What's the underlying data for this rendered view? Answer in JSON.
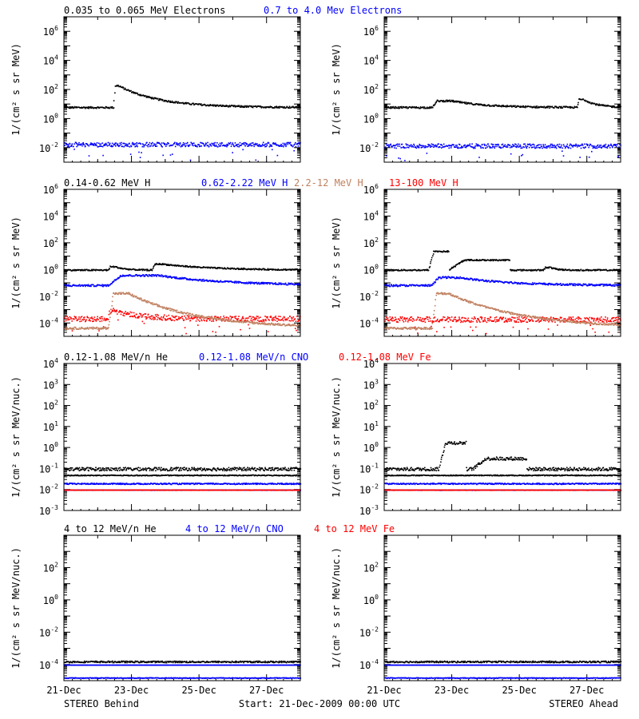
{
  "chart_data": [
    {
      "type": "scatter",
      "row": 1,
      "ylabel": "1/(cm² s sr MeV)",
      "ylim_exp": [
        -3,
        7
      ],
      "yticks": [
        {
          "exp": "-2",
          "label": "10-2"
        },
        {
          "exp": "0",
          "label": "100"
        },
        {
          "exp": "2",
          "label": "102"
        },
        {
          "exp": "4",
          "label": "104"
        },
        {
          "exp": "6",
          "label": "106"
        }
      ],
      "legend": [
        {
          "name": "0.035 to 0.065 MeV Electrons",
          "color": "#000000"
        },
        {
          "name": "0.7 to 4.0 Mev Electrons",
          "color": "#0000ff"
        }
      ],
      "panels": [
        {
          "spacecraft": "STEREO Behind",
          "series": [
            {
              "color": "#000000",
              "base_exp": 0.8,
              "noise": 0.06,
              "events": [
                {
                  "t0": 1.45,
                  "t1": 1.6,
                  "peak": 1.5,
                  "decay": 1.2
                }
              ]
            },
            {
              "color": "#0000ff",
              "base_exp": -1.75,
              "noise": 0.15,
              "events": []
            }
          ]
        },
        {
          "spacecraft": "STEREO Ahead",
          "series": [
            {
              "color": "#000000",
              "base_exp": 0.8,
              "noise": 0.06,
              "events": [
                {
                  "t0": 1.4,
                  "t1": 2.0,
                  "peak": 0.45,
                  "decay": 1.0
                },
                {
                  "t0": 5.7,
                  "t1": 5.9,
                  "peak": 0.55,
                  "decay": 0.4
                }
              ]
            },
            {
              "color": "#0000ff",
              "base_exp": -1.85,
              "noise": 0.15,
              "events": []
            }
          ]
        }
      ]
    },
    {
      "type": "scatter",
      "row": 2,
      "ylabel": "1/(cm² s sr MeV)",
      "ylim_exp": [
        -5,
        6
      ],
      "yticks": [
        {
          "exp": "-4",
          "label": "10-4"
        },
        {
          "exp": "-2",
          "label": "10-2"
        },
        {
          "exp": "0",
          "label": "100"
        },
        {
          "exp": "2",
          "label": "102"
        },
        {
          "exp": "4",
          "label": "104"
        },
        {
          "exp": "6",
          "label": "106"
        }
      ],
      "legend": [
        {
          "name": "0.14-0.62 MeV H",
          "color": "#000000"
        },
        {
          "name": "0.62-2.22 MeV H",
          "color": "#0000ff"
        },
        {
          "name": "2.2-12 MeV H",
          "color": "#c08060"
        },
        {
          "name": "13-100 MeV H",
          "color": "#ff0000"
        }
      ],
      "panels": [
        {
          "spacecraft": "STEREO Behind",
          "series": [
            {
              "color": "#ff0000",
              "base_exp": -3.65,
              "noise": 0.2,
              "events": [
                {
                  "t0": 1.3,
                  "t1": 1.5,
                  "peak": 0.6,
                  "decay": 0.8
                }
              ]
            },
            {
              "color": "#c08060",
              "base_exp": -4.35,
              "noise": 0.08,
              "events": [
                {
                  "t0": 1.3,
                  "t1": 1.9,
                  "peak": 2.6,
                  "decay": 2.0
                }
              ]
            },
            {
              "color": "#0000ff",
              "base_exp": -1.15,
              "noise": 0.07,
              "events": [
                {
                  "t0": 1.3,
                  "t1": 2.8,
                  "peak": 0.75,
                  "decay": 2.0
                }
              ]
            },
            {
              "color": "#000000",
              "base_exp": 0.0,
              "noise": 0.05,
              "events": [
                {
                  "t0": 1.3,
                  "t1": 1.5,
                  "peak": 0.25,
                  "decay": 0.3
                },
                {
                  "t0": 2.6,
                  "t1": 2.9,
                  "peak": 0.45,
                  "decay": 1.5
                }
              ]
            }
          ]
        },
        {
          "spacecraft": "STEREO Ahead",
          "series": [
            {
              "color": "#ff0000",
              "base_exp": -3.7,
              "noise": 0.2,
              "events": []
            },
            {
              "color": "#c08060",
              "base_exp": -4.35,
              "noise": 0.08,
              "events": [
                {
                  "t0": 1.4,
                  "t1": 1.9,
                  "peak": 2.6,
                  "decay": 2.2
                }
              ]
            },
            {
              "color": "#0000ff",
              "base_exp": -1.15,
              "noise": 0.07,
              "events": [
                {
                  "t0": 1.4,
                  "t1": 2.2,
                  "peak": 0.6,
                  "decay": 1.5
                }
              ]
            },
            {
              "color": "#000000",
              "base_exp": 0.0,
              "noise": 0.05,
              "events": [
                {
                  "t0": 1.3,
                  "t1": 1.9,
                  "peak": 1.4,
                  "decay": 0.0
                },
                {
                  "t0": 1.9,
                  "t1": 3.7,
                  "peak": 0.75,
                  "decay": 0.0
                },
                {
                  "t0": 4.7,
                  "t1": 4.9,
                  "peak": 0.2,
                  "decay": 0.2
                }
              ]
            }
          ]
        }
      ]
    },
    {
      "type": "scatter",
      "row": 3,
      "ylabel": "1/(cm² s sr MeV/nuc.)",
      "ylim_exp": [
        -3,
        4
      ],
      "yticks": [
        {
          "exp": "-3",
          "label": "10-3"
        },
        {
          "exp": "-2",
          "label": "10-2"
        },
        {
          "exp": "-1",
          "label": "10-1"
        },
        {
          "exp": "0",
          "label": "100"
        },
        {
          "exp": "1",
          "label": "101"
        },
        {
          "exp": "2",
          "label": "102"
        },
        {
          "exp": "3",
          "label": "103"
        },
        {
          "exp": "4",
          "label": "104"
        }
      ],
      "legend": [
        {
          "name": "0.12-1.08 MeV/n He",
          "color": "#000000"
        },
        {
          "name": "0.12-1.08 MeV/n CNO",
          "color": "#0000ff"
        },
        {
          "name": "0.12-1.08 MeV Fe",
          "color": "#ff0000"
        }
      ],
      "panels": [
        {
          "spacecraft": "STEREO Behind",
          "series": [
            {
              "color": "#000000",
              "base_exp": -1.3,
              "noise": 0.02,
              "events": []
            },
            {
              "color": "#000000",
              "base_exp": -1.0,
              "noise": 0.08,
              "events": []
            },
            {
              "color": "#0000ff",
              "base_exp": -1.7,
              "noise": 0.03,
              "events": []
            },
            {
              "color": "#0000ff",
              "base_exp": -2.0,
              "noise": 0.01,
              "events": []
            },
            {
              "color": "#ff0000",
              "base_exp": -2.0,
              "noise": 0.01,
              "events": []
            }
          ]
        },
        {
          "spacecraft": "STEREO Ahead",
          "series": [
            {
              "color": "#000000",
              "base_exp": -1.3,
              "noise": 0.02,
              "events": []
            },
            {
              "color": "#000000",
              "base_exp": -1.0,
              "noise": 0.08,
              "events": [
                {
                  "t0": 1.6,
                  "t1": 2.4,
                  "peak": 1.25,
                  "decay": 0.0
                },
                {
                  "t0": 2.6,
                  "t1": 4.2,
                  "peak": 0.5,
                  "decay": 0.0
                }
              ]
            },
            {
              "color": "#0000ff",
              "base_exp": -1.7,
              "noise": 0.03,
              "events": []
            },
            {
              "color": "#0000ff",
              "base_exp": -2.0,
              "noise": 0.01,
              "events": []
            },
            {
              "color": "#ff0000",
              "base_exp": -2.0,
              "noise": 0.01,
              "events": []
            }
          ]
        }
      ]
    },
    {
      "type": "scatter",
      "row": 4,
      "ylabel": "1/(cm² s sr MeV/nuc.)",
      "ylim_exp": [
        -5,
        4
      ],
      "yticks": [
        {
          "exp": "-4",
          "label": "10-4"
        },
        {
          "exp": "-2",
          "label": "10-2"
        },
        {
          "exp": "0",
          "label": "100"
        },
        {
          "exp": "2",
          "label": "102"
        }
      ],
      "legend": [
        {
          "name": "4 to 12 MeV/n He",
          "color": "#000000"
        },
        {
          "name": "4 to 12 MeV/n CNO",
          "color": "#0000ff"
        },
        {
          "name": "4 to 12 MeV Fe",
          "color": "#ff0000"
        }
      ],
      "panels": [
        {
          "spacecraft": "STEREO Behind",
          "series": [
            {
              "color": "#0000ff",
              "base_exp": -4.0,
              "noise": 0.0,
              "events": []
            },
            {
              "color": "#000000",
              "base_exp": -3.8,
              "noise": 0.05,
              "events": []
            },
            {
              "color": "#0000ff",
              "base_exp": -4.8,
              "noise": 0.02,
              "events": []
            }
          ]
        },
        {
          "spacecraft": "STEREO Ahead",
          "series": [
            {
              "color": "#0000ff",
              "base_exp": -4.0,
              "noise": 0.0,
              "events": []
            },
            {
              "color": "#000000",
              "base_exp": -3.8,
              "noise": 0.05,
              "events": []
            },
            {
              "color": "#0000ff",
              "base_exp": -4.8,
              "noise": 0.02,
              "events": []
            }
          ]
        }
      ]
    }
  ],
  "x_axis": {
    "range_days": [
      0,
      7
    ],
    "major_ticks": [
      {
        "day": 0,
        "label": "21-Dec"
      },
      {
        "day": 2,
        "label": "23-Dec"
      },
      {
        "day": 4,
        "label": "25-Dec"
      },
      {
        "day": 6,
        "label": "27-Dec"
      }
    ]
  },
  "footer": {
    "left": "STEREO Behind",
    "center": "Start: 21-Dec-2009 00:00 UTC",
    "right": "STEREO Ahead"
  }
}
